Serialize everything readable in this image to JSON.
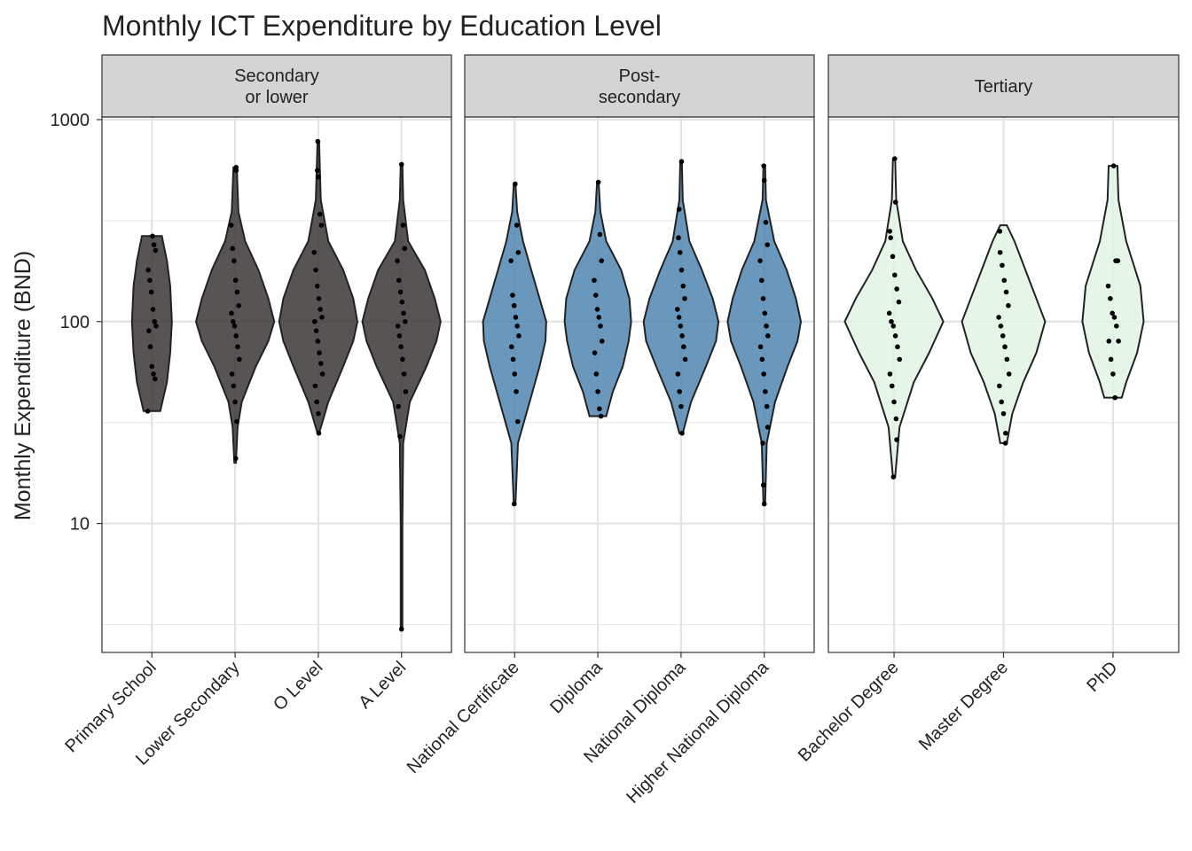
{
  "chart_data": {
    "type": "violin",
    "title": "Monthly ICT Expenditure by Education Level",
    "ylabel": "Monthly Expenditure (BND)",
    "log_y": true,
    "ylim": [
      2.3,
      1030
    ],
    "yticks": [
      10,
      100,
      1000
    ],
    "minor_grid": [
      3.16,
      31.6,
      316
    ],
    "grid": true,
    "point_color": "#000000",
    "facets": [
      {
        "label": "Secondary\nor lower",
        "color": "#3b3636",
        "categories": [
          "Primary School",
          "Lower Secondary",
          "O Level",
          "A Level"
        ],
        "violins": [
          {
            "y": [
              36,
              50,
              70,
              100,
              150,
              200,
              265
            ],
            "w": [
              0.1,
              0.18,
              0.22,
              0.24,
              0.22,
              0.18,
              0.12
            ]
          },
          {
            "y": [
              20,
              30,
              40,
              60,
              80,
              100,
              130,
              180,
              250,
              350,
              580
            ],
            "w": [
              0.01,
              0.03,
              0.08,
              0.25,
              0.4,
              0.47,
              0.4,
              0.28,
              0.12,
              0.04,
              0.02
            ]
          },
          {
            "y": [
              28,
              40,
              60,
              80,
              100,
              130,
              180,
              250,
              400,
              780
            ],
            "w": [
              0.01,
              0.12,
              0.3,
              0.42,
              0.47,
              0.42,
              0.3,
              0.12,
              0.03,
              0.01
            ]
          },
          {
            "y": [
              3,
              10,
              25,
              40,
              60,
              80,
              100,
              130,
              180,
              250,
              400,
              600
            ],
            "w": [
              0.01,
              0.01,
              0.02,
              0.1,
              0.3,
              0.42,
              0.47,
              0.4,
              0.28,
              0.08,
              0.02,
              0.01
            ]
          }
        ],
        "points": [
          [
            36,
            52,
            55,
            60,
            75,
            90,
            95,
            100,
            115,
            140,
            160,
            180,
            225,
            240,
            265
          ],
          [
            21,
            32,
            40,
            48,
            55,
            65,
            75,
            85,
            95,
            100,
            110,
            120,
            140,
            160,
            200,
            230,
            300,
            560,
            580
          ],
          [
            28,
            35,
            40,
            48,
            55,
            62,
            70,
            80,
            90,
            100,
            105,
            115,
            130,
            150,
            180,
            220,
            300,
            340,
            520,
            560,
            780
          ],
          [
            3,
            27,
            38,
            45,
            55,
            65,
            75,
            85,
            95,
            100,
            110,
            125,
            140,
            160,
            200,
            230,
            300,
            600
          ]
        ]
      },
      {
        "label": "Post-\nsecondary",
        "color": "#4f86b0",
        "categories": [
          "National Certificate",
          "Diploma",
          "National Diploma",
          "Higher National Diploma"
        ],
        "violins": [
          {
            "y": [
              12.5,
              25,
              40,
              60,
              80,
              100,
              130,
              180,
              250,
              350,
              480
            ],
            "w": [
              0.01,
              0.04,
              0.18,
              0.3,
              0.37,
              0.38,
              0.3,
              0.2,
              0.1,
              0.03,
              0.01
            ]
          },
          {
            "y": [
              34,
              45,
              60,
              80,
              100,
              130,
              180,
              250,
              350,
              490
            ],
            "w": [
              0.1,
              0.18,
              0.3,
              0.37,
              0.4,
              0.38,
              0.28,
              0.1,
              0.03,
              0.01
            ]
          },
          {
            "y": [
              28,
              40,
              60,
              80,
              100,
              130,
              180,
              250,
              400,
              620
            ],
            "w": [
              0.02,
              0.12,
              0.3,
              0.42,
              0.45,
              0.38,
              0.25,
              0.1,
              0.02,
              0.01
            ]
          },
          {
            "y": [
              12.5,
              25,
              40,
              60,
              80,
              100,
              130,
              180,
              250,
              400,
              590
            ],
            "w": [
              0.01,
              0.03,
              0.13,
              0.28,
              0.4,
              0.44,
              0.38,
              0.27,
              0.12,
              0.02,
              0.01
            ]
          }
        ],
        "points": [
          [
            12.5,
            32,
            45,
            55,
            65,
            75,
            85,
            95,
            105,
            120,
            135,
            200,
            220,
            300,
            480
          ],
          [
            34,
            37,
            45,
            55,
            70,
            80,
            95,
            105,
            115,
            135,
            160,
            200,
            270,
            490
          ],
          [
            28,
            38,
            45,
            55,
            65,
            75,
            85,
            95,
            105,
            115,
            130,
            150,
            180,
            220,
            260,
            360,
            620
          ],
          [
            12.5,
            15.5,
            25,
            30,
            38,
            45,
            55,
            65,
            75,
            85,
            95,
            110,
            130,
            160,
            200,
            240,
            310,
            500,
            590
          ]
        ]
      },
      {
        "label": "Tertiary",
        "color": "#e0f5e4",
        "categories": [
          "Bachelor Degree",
          "Master Degree",
          "PhD"
        ],
        "violins": [
          {
            "y": [
              17,
              30,
              50,
              70,
              100,
              130,
              180,
              250,
              400,
              640
            ],
            "w": [
              0.01,
              0.05,
              0.18,
              0.32,
              0.45,
              0.35,
              0.2,
              0.08,
              0.02,
              0.01
            ]
          },
          {
            "y": [
              25,
              35,
              50,
              70,
              100,
              130,
              180,
              250,
              300
            ],
            "w": [
              0.03,
              0.08,
              0.18,
              0.3,
              0.38,
              0.3,
              0.2,
              0.1,
              0.03
            ]
          },
          {
            "y": [
              42,
              50,
              70,
              100,
              150,
              250,
              400,
              590
            ],
            "w": [
              0.08,
              0.12,
              0.22,
              0.28,
              0.25,
              0.12,
              0.05,
              0.04
            ]
          }
        ],
        "points": [
          [
            17,
            26,
            33,
            40,
            48,
            55,
            65,
            75,
            85,
            95,
            100,
            110,
            125,
            145,
            170,
            210,
            260,
            280,
            390,
            640
          ],
          [
            25,
            28,
            35,
            40,
            48,
            55,
            65,
            75,
            85,
            95,
            105,
            120,
            140,
            160,
            190,
            220,
            280
          ],
          [
            42,
            55,
            65,
            80,
            80,
            95,
            105,
            110,
            130,
            150,
            200,
            200,
            590
          ]
        ]
      }
    ]
  }
}
